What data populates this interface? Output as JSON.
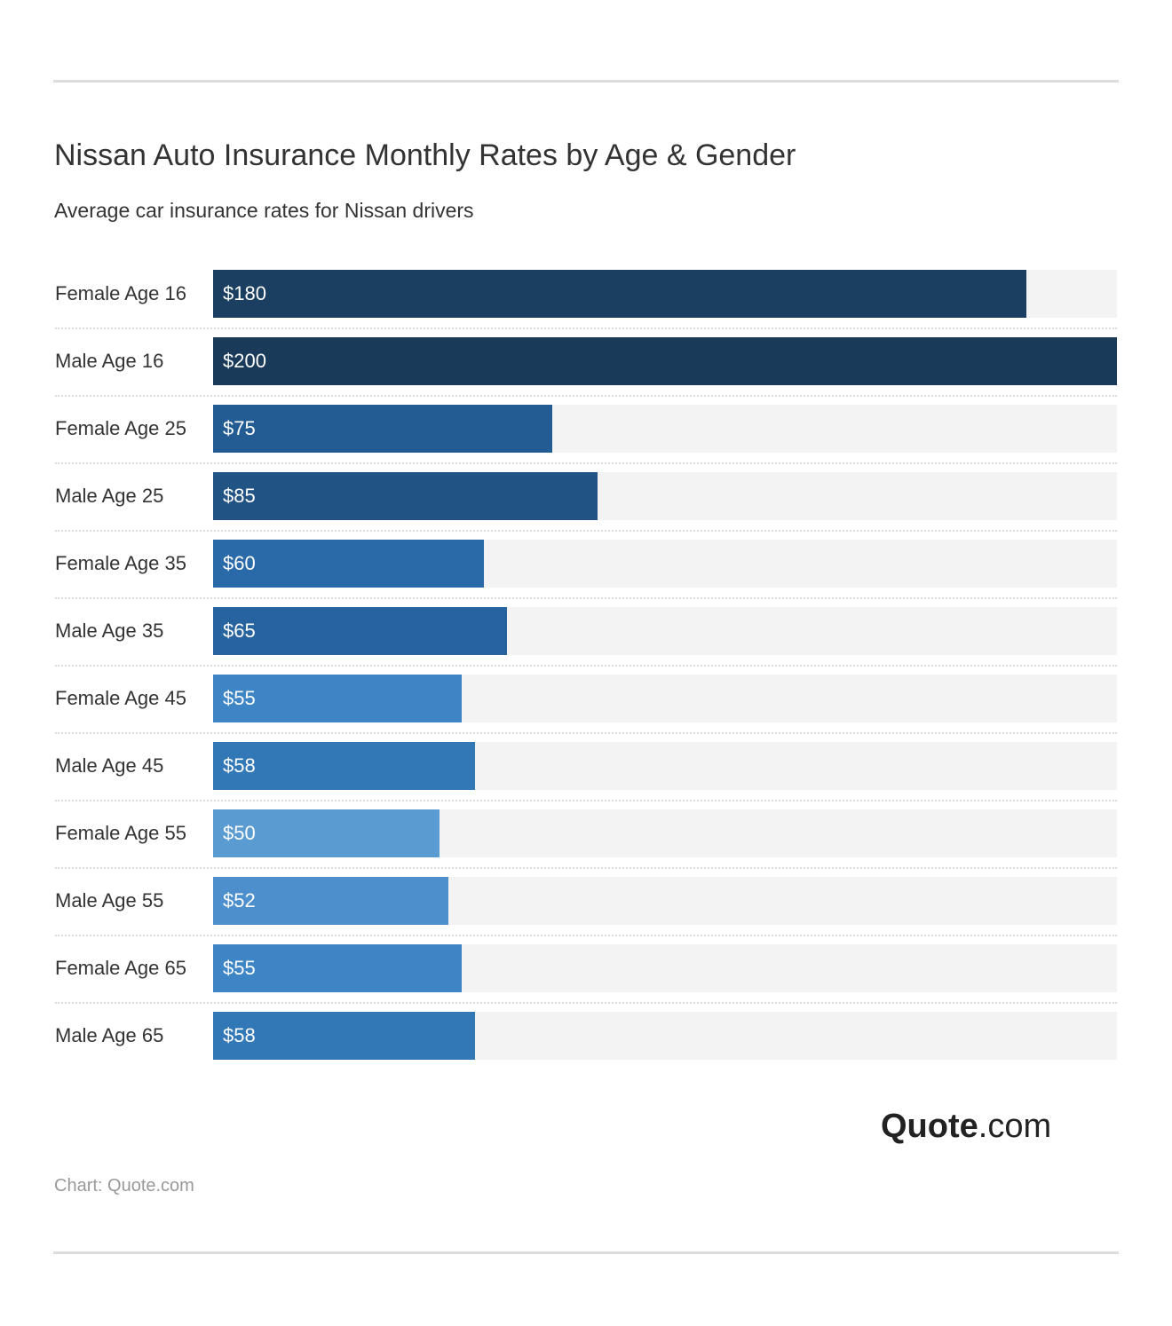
{
  "header": {
    "title": "Nissan Auto Insurance Monthly Rates by Age & Gender",
    "subtitle": "Average car insurance rates for Nissan drivers"
  },
  "chart_data": {
    "type": "bar",
    "orientation": "horizontal",
    "xlim": [
      0,
      200
    ],
    "grid": false,
    "categories": [
      "Female Age 16",
      "Male Age 16",
      "Female Age 25",
      "Male Age 25",
      "Female Age 35",
      "Male Age 35",
      "Female Age 45",
      "Male Age 45",
      "Female Age 55",
      "Male Age 55",
      "Female Age 65",
      "Male Age 65"
    ],
    "values": [
      180,
      200,
      75,
      85,
      60,
      65,
      55,
      58,
      50,
      52,
      55,
      58
    ],
    "labels": [
      "$180",
      "$200",
      "$75",
      "$85",
      "$60",
      "$65",
      "$55",
      "$58",
      "$50",
      "$52",
      "$55",
      "$58"
    ],
    "colors": [
      "#1b3f60",
      "#1a3a5a",
      "#225c93",
      "#215385",
      "#2a6aa8",
      "#27649f",
      "#3d85c5",
      "#3278b7",
      "#5a9cd2",
      "#4c8fcc",
      "#3d85c5",
      "#3278b7"
    ]
  },
  "logo": {
    "bold": "Quote",
    "rest": ".com"
  },
  "footer": {
    "credit": "Chart: Quote.com"
  }
}
